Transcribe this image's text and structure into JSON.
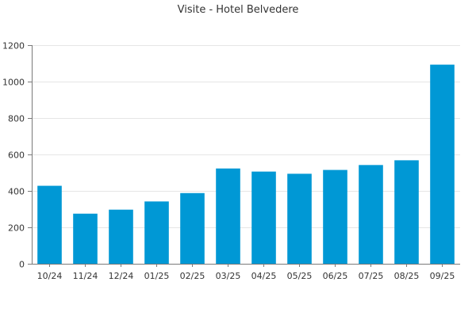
{
  "chart_data": {
    "type": "bar",
    "title": "Visite - Hotel Belvedere",
    "xlabel": "",
    "ylabel": "",
    "categories": [
      "10/24",
      "11/24",
      "12/24",
      "01/25",
      "02/25",
      "03/25",
      "04/25",
      "05/25",
      "06/25",
      "07/25",
      "08/25",
      "09/25"
    ],
    "values": [
      428,
      275,
      297,
      342,
      388,
      523,
      506,
      494,
      515,
      542,
      568,
      1093
    ],
    "ylim": [
      0,
      1200
    ],
    "yticks": [
      0,
      200,
      400,
      600,
      800,
      1000,
      1200
    ],
    "grid": true,
    "legend": "none",
    "colors": {
      "bar": "#0098d5",
      "grid": "#e6e6e6",
      "axis": "#7a7a7a",
      "text": "#333333"
    }
  }
}
